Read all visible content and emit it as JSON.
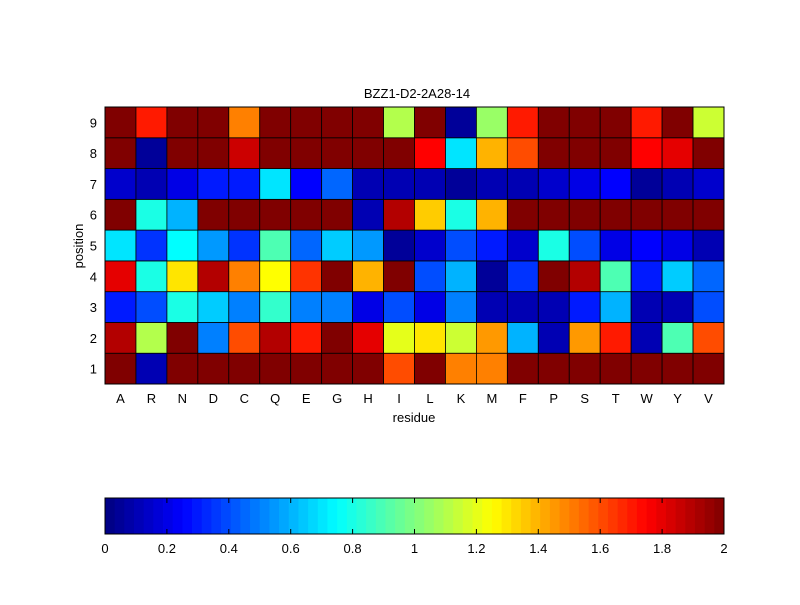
{
  "chart_data": {
    "type": "heatmap",
    "title": "BZZ1-D2-2A28-14",
    "xlabel": "residue",
    "ylabel": "position",
    "x_categories": [
      "A",
      "R",
      "N",
      "D",
      "C",
      "Q",
      "E",
      "G",
      "H",
      "I",
      "L",
      "K",
      "M",
      "F",
      "P",
      "S",
      "T",
      "W",
      "Y",
      "V"
    ],
    "y_categories": [
      "1",
      "2",
      "3",
      "4",
      "5",
      "6",
      "7",
      "8",
      "9"
    ],
    "values": [
      [
        2.0,
        0.1,
        2.0,
        2.0,
        2.0,
        2.0,
        2.0,
        2.0,
        2.0,
        1.6,
        2.0,
        1.5,
        1.5,
        2.0,
        2.0,
        2.0,
        2.0,
        2.0,
        2.0,
        2.0
      ],
      [
        1.9,
        1.1,
        2.0,
        0.5,
        1.6,
        1.9,
        1.7,
        2.0,
        1.8,
        1.2,
        1.3,
        1.15,
        1.45,
        0.6,
        0.1,
        1.45,
        1.7,
        0.1,
        0.9,
        1.6
      ],
      [
        0.3,
        0.4,
        0.8,
        0.65,
        0.5,
        0.85,
        0.5,
        0.5,
        0.2,
        0.4,
        0.2,
        0.5,
        0.1,
        0.1,
        0.1,
        0.3,
        0.6,
        0.1,
        0.1,
        0.4
      ],
      [
        1.8,
        0.8,
        1.3,
        1.9,
        1.5,
        1.25,
        1.65,
        2.0,
        1.4,
        2.0,
        0.4,
        0.6,
        0.05,
        0.35,
        2.0,
        1.9,
        0.9,
        0.3,
        0.65,
        0.45
      ],
      [
        0.7,
        0.35,
        0.75,
        0.55,
        0.35,
        0.9,
        0.45,
        0.65,
        0.55,
        0.05,
        0.15,
        0.4,
        0.3,
        0.15,
        0.8,
        0.4,
        0.2,
        0.25,
        0.2,
        0.1
      ],
      [
        2.0,
        0.8,
        0.6,
        2.0,
        2.0,
        2.0,
        2.0,
        2.0,
        0.1,
        1.9,
        1.35,
        0.8,
        1.4,
        2.0,
        2.0,
        2.0,
        2.0,
        2.0,
        2.0,
        2.0
      ],
      [
        0.15,
        0.1,
        0.2,
        0.3,
        0.3,
        0.7,
        0.25,
        0.45,
        0.1,
        0.1,
        0.1,
        0.05,
        0.1,
        0.1,
        0.15,
        0.2,
        0.25,
        0.05,
        0.1,
        0.15
      ],
      [
        2.0,
        0.05,
        2.0,
        2.0,
        1.85,
        2.0,
        2.0,
        2.0,
        2.0,
        2.0,
        1.75,
        0.7,
        1.4,
        1.6,
        2.0,
        2.0,
        2.0,
        1.75,
        1.8,
        2.0
      ],
      [
        2.0,
        1.7,
        2.0,
        2.0,
        1.5,
        2.0,
        2.0,
        2.0,
        2.0,
        1.1,
        2.0,
        0.05,
        1.05,
        1.7,
        2.0,
        2.0,
        2.0,
        1.7,
        2.0,
        1.15
      ]
    ],
    "colorbar": {
      "colormap": "jet",
      "range": [
        0,
        2
      ],
      "ticks": [
        0,
        0.2,
        0.4,
        0.6,
        0.8,
        1,
        1.2,
        1.4,
        1.6,
        1.8,
        2
      ],
      "tick_labels": [
        "0",
        "0.2",
        "0.4",
        "0.6",
        "0.8",
        "1",
        "1.2",
        "1.4",
        "1.6",
        "1.8",
        "2"
      ]
    }
  }
}
